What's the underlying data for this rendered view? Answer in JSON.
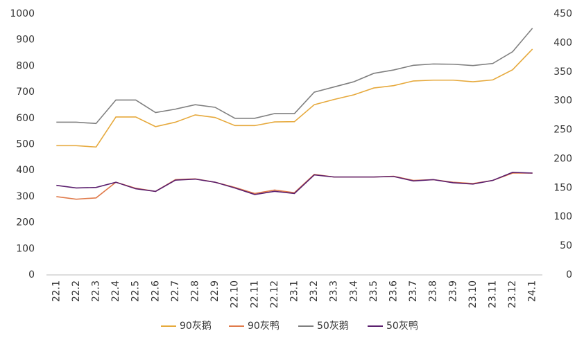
{
  "chart_data": {
    "type": "line",
    "categories": [
      "22.1",
      "22.2",
      "22.3",
      "22.4",
      "22.5",
      "22.6",
      "22.7",
      "22.8",
      "22.9",
      "22.10",
      "22.11",
      "22.12",
      "23.1",
      "23.2",
      "23.3",
      "23.4",
      "23.5",
      "23.6",
      "23.7",
      "23.8",
      "23.9",
      "23.10",
      "23.11",
      "23.12",
      "24.1"
    ],
    "series": [
      {
        "name": "90灰鹅",
        "color": "#e6a93c",
        "values": [
          495,
          495,
          490,
          605,
          605,
          568,
          585,
          613,
          603,
          572,
          572,
          586,
          587,
          652,
          672,
          690,
          716,
          725,
          743,
          746,
          746,
          740,
          747,
          786,
          865
        ]
      },
      {
        "name": "90灰鸭",
        "color": "#e07a4a",
        "values": [
          300,
          290,
          295,
          355,
          332,
          320,
          365,
          368,
          355,
          335,
          312,
          325,
          315,
          385,
          375,
          375,
          375,
          378,
          362,
          365,
          355,
          350,
          362,
          390,
          390
        ]
      },
      {
        "name": "50灰鹅",
        "color": "#7f7f7f",
        "values": [
          585,
          585,
          580,
          670,
          670,
          622,
          635,
          652,
          642,
          600,
          600,
          618,
          618,
          700,
          720,
          740,
          772,
          785,
          803,
          808,
          807,
          802,
          810,
          855,
          945
        ]
      },
      {
        "name": "50灰鸭",
        "color": "#5b1f6e",
        "values": [
          343,
          333,
          335,
          355,
          330,
          320,
          363,
          367,
          355,
          333,
          308,
          320,
          312,
          383,
          375,
          375,
          375,
          377,
          360,
          365,
          353,
          348,
          362,
          393,
          390
        ]
      }
    ],
    "ylim": [
      0,
      1000
    ],
    "yticks": [
      0,
      100,
      200,
      300,
      400,
      500,
      600,
      700,
      800,
      900,
      1000
    ],
    "y2lim": [
      0,
      450
    ],
    "y2ticks": [
      0,
      50,
      100,
      150,
      200,
      250,
      300,
      350,
      400,
      450
    ],
    "grid": false
  }
}
